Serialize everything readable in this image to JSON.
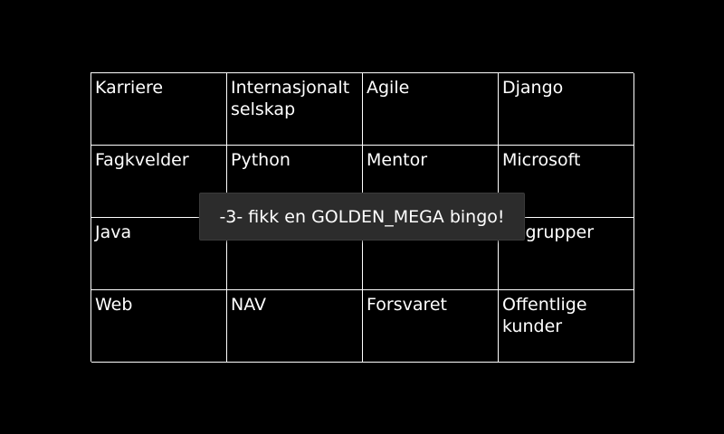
{
  "bingo": {
    "cells": [
      "Karriere",
      "Internasjonalt selskap",
      "Agile",
      "Django",
      "Fagkvelder",
      "Python",
      "Mentor",
      "Microsoft",
      "Java",
      "",
      "",
      "ettsgrupper",
      "Web",
      "NAV",
      "Forsvaret",
      "Offentlige kunder"
    ]
  },
  "toast": {
    "message": "-3- fikk en GOLDEN_MEGA bingo!"
  },
  "colors": {
    "background": "#000000",
    "grid_line": "#ffffff",
    "text": "#ffffff",
    "toast_background": "#2c2c2c"
  }
}
